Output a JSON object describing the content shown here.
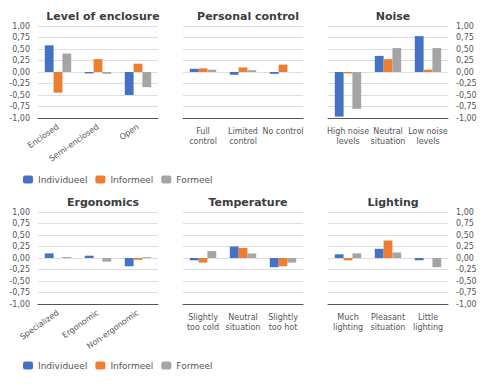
{
  "chart_data": [
    {
      "type": "bar",
      "title": "Level of enclosure",
      "categories": [
        "Enclosed",
        "Semi-enclosed",
        "Open"
      ],
      "series": [
        {
          "name": "Individueel",
          "color": "#4472C4",
          "values": [
            0.58,
            -0.03,
            -0.5
          ]
        },
        {
          "name": "Informeel",
          "color": "#ED7D31",
          "values": [
            -0.45,
            0.28,
            0.18
          ]
        },
        {
          "name": "Formeel",
          "color": "#A5A5A5",
          "values": [
            0.4,
            -0.04,
            -0.33
          ]
        }
      ],
      "ylim": [
        -1.0,
        1.0
      ],
      "yticks": [
        {
          "value": -1.0,
          "label": "-1,00"
        },
        {
          "value": -0.75,
          "label": "-0,75"
        },
        {
          "value": -0.5,
          "label": "-0,50"
        },
        {
          "value": -0.25,
          "label": "-0,25"
        },
        {
          "value": 0.0,
          "label": "0,00"
        },
        {
          "value": 0.25,
          "label": "0,25"
        },
        {
          "value": 0.5,
          "label": "0,50"
        },
        {
          "value": 0.75,
          "label": "0,75"
        },
        {
          "value": 1.0,
          "label": "1,00"
        }
      ],
      "grid": true,
      "legend": "lower left"
    },
    {
      "type": "bar",
      "title": "Personal control",
      "categories": [
        "Full\ncontrol",
        "Limited\ncontrol",
        "No control"
      ],
      "series": [
        {
          "name": "Individueel",
          "color": "#4472C4",
          "values": [
            0.07,
            -0.06,
            -0.04
          ]
        },
        {
          "name": "Informeel",
          "color": "#ED7D31",
          "values": [
            0.08,
            0.1,
            0.16
          ]
        },
        {
          "name": "Formeel",
          "color": "#A5A5A5",
          "values": [
            0.05,
            0.04,
            0.0
          ]
        }
      ],
      "ylim": [
        -1.0,
        1.0
      ],
      "yticks": [
        {
          "value": -1.0,
          "label": "-1,00"
        },
        {
          "value": -0.75,
          "label": "-0,75"
        },
        {
          "value": -0.5,
          "label": "-0,50"
        },
        {
          "value": -0.25,
          "label": "-0,25"
        },
        {
          "value": 0.0,
          "label": "0,00"
        },
        {
          "value": 0.25,
          "label": "0,25"
        },
        {
          "value": 0.5,
          "label": "0,50"
        },
        {
          "value": 0.75,
          "label": "0,75"
        },
        {
          "value": 1.0,
          "label": "1,00"
        }
      ],
      "grid": true,
      "legend": false,
      "tick_labels": "x"
    },
    {
      "type": "bar",
      "title": "Noise",
      "categories": [
        "High noise\nlevels",
        "Neutral\nsituation",
        "Low noise\nlevels"
      ],
      "series": [
        {
          "name": "Individueel",
          "color": "#4472C4",
          "values": [
            -0.97,
            0.35,
            0.78
          ]
        },
        {
          "name": "Informeel",
          "color": "#ED7D31",
          "values": [
            -0.03,
            0.28,
            0.05
          ]
        },
        {
          "name": "Formeel",
          "color": "#A5A5A5",
          "values": [
            -0.8,
            0.52,
            0.52
          ]
        }
      ],
      "ylim": [
        -1.0,
        1.0
      ],
      "yticks": [
        {
          "value": -1.0,
          "label": "-1,00"
        },
        {
          "value": -0.75,
          "label": "-0,75"
        },
        {
          "value": -0.5,
          "label": "-0,50"
        },
        {
          "value": -0.25,
          "label": "-0,25"
        },
        {
          "value": 0.0,
          "label": "0,00"
        },
        {
          "value": 0.25,
          "label": "0,25"
        },
        {
          "value": 0.5,
          "label": "0,50"
        },
        {
          "value": 0.75,
          "label": "0,75"
        },
        {
          "value": 1.0,
          "label": "1,00"
        }
      ],
      "grid": true,
      "legend": false
    },
    {
      "type": "bar",
      "title": "Ergonomics",
      "categories": [
        "Specialized",
        "Ergonomic",
        "Non-ergonomic"
      ],
      "series": [
        {
          "name": "Individueel",
          "color": "#4472C4",
          "values": [
            0.1,
            0.05,
            -0.18
          ]
        },
        {
          "name": "Informeel",
          "color": "#ED7D31",
          "values": [
            0.0,
            0.0,
            -0.04
          ]
        },
        {
          "name": "Formeel",
          "color": "#A5A5A5",
          "values": [
            0.02,
            -0.08,
            0.02
          ]
        }
      ],
      "ylim": [
        -1.0,
        1.0
      ],
      "yticks": [
        {
          "value": -1.0,
          "label": "-1,00"
        },
        {
          "value": -0.75,
          "label": "-0,75"
        },
        {
          "value": -0.5,
          "label": "-0,50"
        },
        {
          "value": -0.25,
          "label": "-0,25"
        },
        {
          "value": 0.0,
          "label": "0,00"
        },
        {
          "value": 0.25,
          "label": "0,25"
        },
        {
          "value": 0.5,
          "label": "0,50"
        },
        {
          "value": 0.75,
          "label": "0,75"
        },
        {
          "value": 1.0,
          "label": "1,00"
        }
      ],
      "grid": true,
      "legend": "lower left"
    },
    {
      "type": "bar",
      "title": "Temperature",
      "categories": [
        "Slightly\ntoo cold",
        "Neutral\nsituation",
        "Slightly\ntoo hot"
      ],
      "series": [
        {
          "name": "Individueel",
          "color": "#4472C4",
          "values": [
            -0.05,
            0.25,
            -0.2
          ]
        },
        {
          "name": "Informeel",
          "color": "#ED7D31",
          "values": [
            -0.1,
            0.22,
            -0.18
          ]
        },
        {
          "name": "Formeel",
          "color": "#A5A5A5",
          "values": [
            0.15,
            0.1,
            -0.1
          ]
        }
      ],
      "ylim": [
        -1.0,
        1.0
      ],
      "yticks": [
        {
          "value": -1.0,
          "label": "-1,00"
        },
        {
          "value": -0.75,
          "label": "-0,75"
        },
        {
          "value": -0.5,
          "label": "-0,50"
        },
        {
          "value": -0.25,
          "label": "-0,25"
        },
        {
          "value": 0.0,
          "label": "0,00"
        },
        {
          "value": 0.25,
          "label": "0,25"
        },
        {
          "value": 0.5,
          "label": "0,50"
        },
        {
          "value": 0.75,
          "label": "0,75"
        },
        {
          "value": 1.0,
          "label": "1,00"
        }
      ],
      "grid": true,
      "legend": false,
      "tick_labels": "x"
    },
    {
      "type": "bar",
      "title": "Lighting",
      "categories": [
        "Much\nlighting",
        "Pleasant\nsituation",
        "Little\nlighting"
      ],
      "series": [
        {
          "name": "Individueel",
          "color": "#4472C4",
          "values": [
            0.08,
            0.2,
            -0.05
          ]
        },
        {
          "name": "Informeel",
          "color": "#ED7D31",
          "values": [
            -0.05,
            0.38,
            0.0
          ]
        },
        {
          "name": "Formeel",
          "color": "#A5A5A5",
          "values": [
            0.1,
            0.12,
            -0.2
          ]
        }
      ],
      "ylim": [
        -1.0,
        1.0
      ],
      "yticks": [
        {
          "value": -1.0,
          "label": "-1,00"
        },
        {
          "value": -0.75,
          "label": "-0,75"
        },
        {
          "value": -0.5,
          "label": "-0,50"
        },
        {
          "value": -0.25,
          "label": "-0,25"
        },
        {
          "value": 0.0,
          "label": "0,00"
        },
        {
          "value": 0.25,
          "label": "0,25"
        },
        {
          "value": 0.5,
          "label": "0,50"
        },
        {
          "value": 0.75,
          "label": "0,75"
        },
        {
          "value": 1.0,
          "label": "1,00"
        }
      ],
      "grid": true,
      "legend": false
    }
  ]
}
